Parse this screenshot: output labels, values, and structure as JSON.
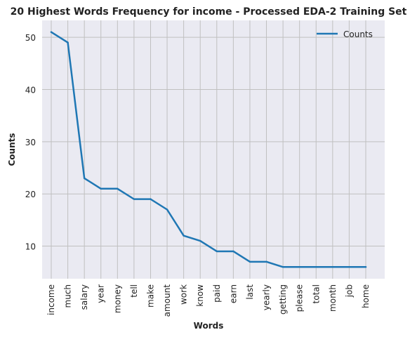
{
  "colors": {
    "plot_background": "#EAEAF2",
    "grid": "#C0C0C0",
    "line": "#1F77B4",
    "text": "#222222"
  },
  "chart_data": {
    "type": "line",
    "title": "20 Highest Words Frequency for income - Processed EDA-2 Training Set",
    "xlabel": "Words",
    "ylabel": "Counts",
    "categories": [
      "income",
      "much",
      "salary",
      "year",
      "money",
      "tell",
      "make",
      "amount",
      "work",
      "know",
      "paid",
      "earn",
      "last",
      "yearly",
      "getting",
      "please",
      "total",
      "month",
      "job",
      "home"
    ],
    "series": [
      {
        "name": "Counts",
        "values": [
          51,
          49,
          23,
          21,
          21,
          19,
          19,
          17,
          12,
          11,
          9,
          9,
          7,
          7,
          6,
          6,
          6,
          6,
          6,
          6
        ]
      }
    ],
    "yticks": [
      10,
      20,
      30,
      40,
      50
    ],
    "ylim": [
      3.75,
      53.25
    ],
    "grid": true,
    "legend_position": "top-right"
  }
}
